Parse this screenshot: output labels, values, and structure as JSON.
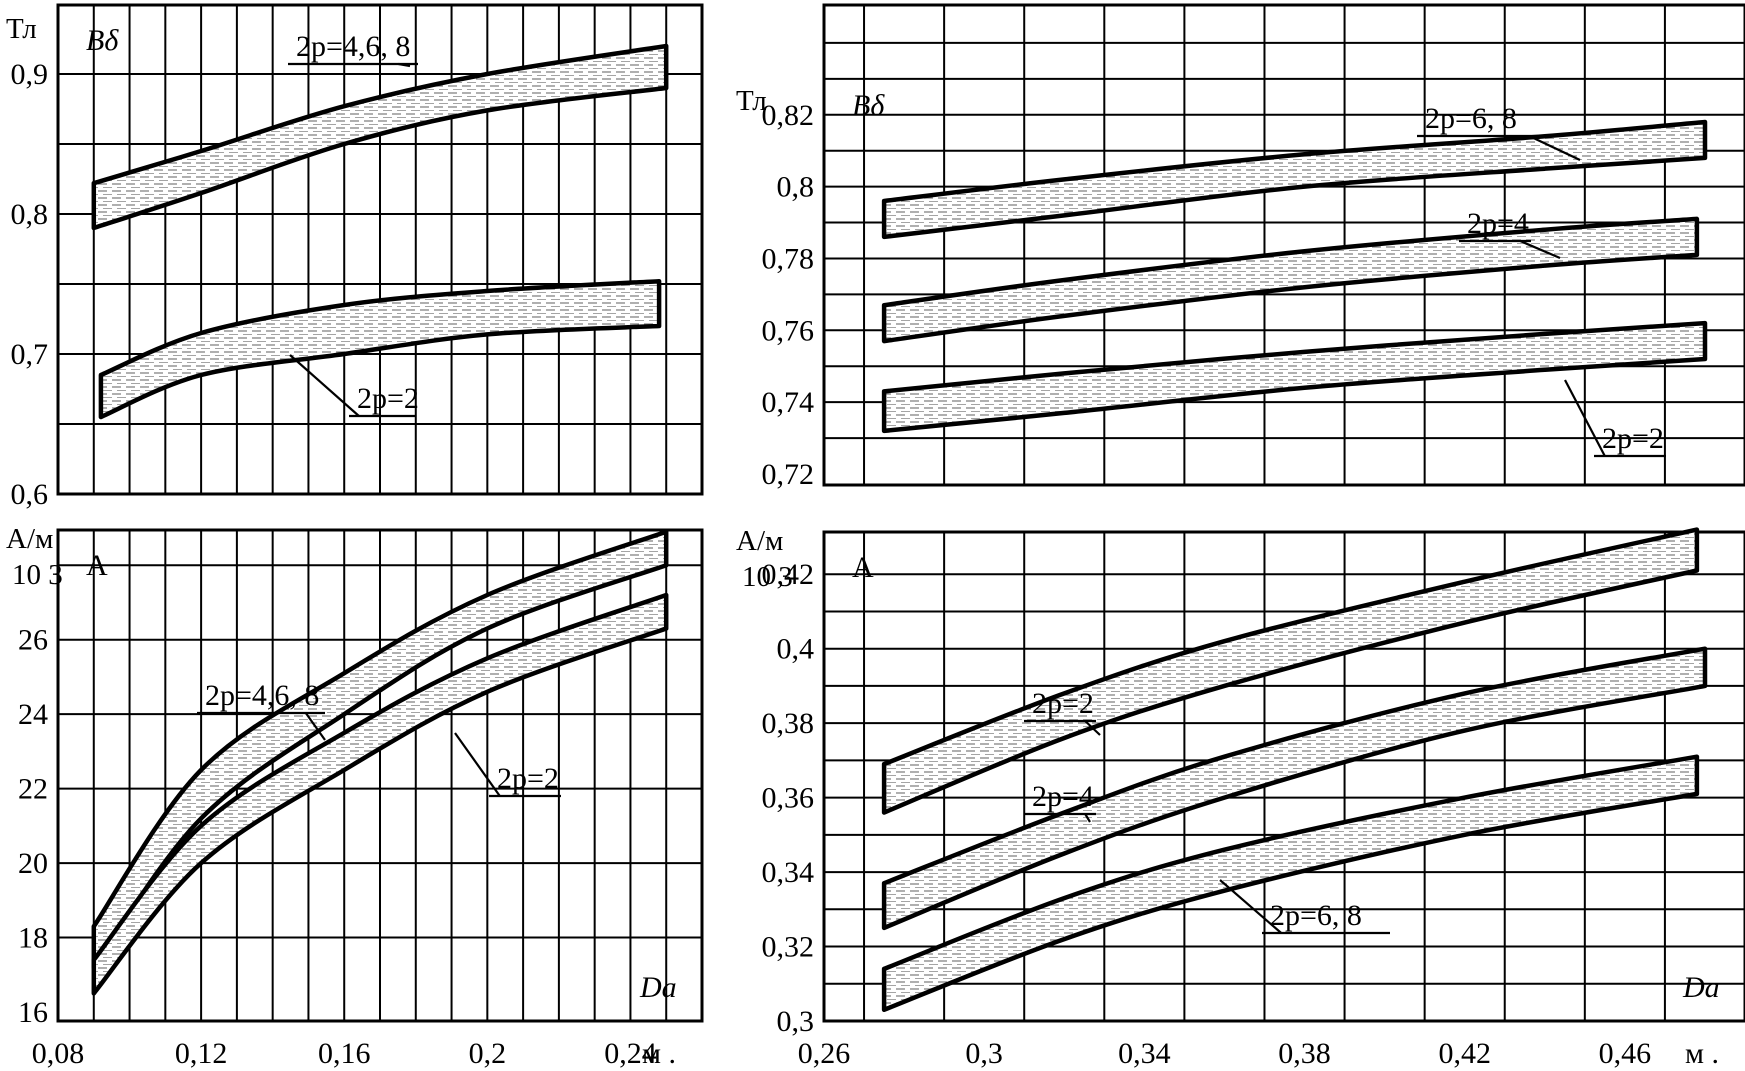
{
  "figure": {
    "x_unit_label": "м .",
    "colors": {
      "ink": "#000000",
      "paper": "#ffffff",
      "hatch": "#7a7a7a"
    }
  },
  "chart_data": [
    {
      "id": "top-left",
      "type": "area",
      "unit_label": "Тл",
      "corner_label": "Bδ",
      "x_ticks": [],
      "y_ticks": [
        "0,6",
        "0,7",
        "0,8",
        "0,9"
      ],
      "xlim": [
        0.08,
        0.26
      ],
      "ylim": [
        0.6,
        0.95
      ],
      "grid": true,
      "bands": [
        {
          "label": "2p=4,6, 8",
          "x_left": 0.09,
          "x_right": 0.25,
          "upper": [
            [
              0.09,
              0.822
            ],
            [
              0.12,
              0.845
            ],
            [
              0.16,
              0.877
            ],
            [
              0.2,
              0.9
            ],
            [
              0.25,
              0.92
            ]
          ],
          "lower": [
            [
              0.09,
              0.79
            ],
            [
              0.12,
              0.815
            ],
            [
              0.16,
              0.85
            ],
            [
              0.2,
              0.874
            ],
            [
              0.25,
              0.89
            ]
          ]
        },
        {
          "label": "2p=2",
          "x_left": 0.092,
          "x_right": 0.248,
          "upper": [
            [
              0.092,
              0.685
            ],
            [
              0.12,
              0.715
            ],
            [
              0.16,
              0.735
            ],
            [
              0.2,
              0.745
            ],
            [
              0.248,
              0.752
            ]
          ],
          "lower": [
            [
              0.092,
              0.655
            ],
            [
              0.12,
              0.685
            ],
            [
              0.16,
              0.7
            ],
            [
              0.2,
              0.714
            ],
            [
              0.248,
              0.72
            ]
          ]
        }
      ]
    },
    {
      "id": "bottom-left",
      "type": "area",
      "unit_label": "А/м",
      "multiplier_label": "10 3",
      "corner_label": "A",
      "x_axis_label": "Dа",
      "x_ticks": [
        "0,08",
        "0,12",
        "0,16",
        "0,2",
        "0,24"
      ],
      "y_ticks": [
        "16",
        "18",
        "20",
        "22",
        "24",
        "26"
      ],
      "xlim": [
        0.08,
        0.26
      ],
      "ylim": [
        16,
        29
      ],
      "grid": true,
      "bands": [
        {
          "label": "2p=4,6, 8",
          "x_left": 0.09,
          "x_right": 0.25,
          "upper": [
            [
              0.09,
              18.3
            ],
            [
              0.12,
              22.5
            ],
            [
              0.16,
              25.1
            ],
            [
              0.2,
              27.2
            ],
            [
              0.25,
              28.9
            ]
          ],
          "lower": [
            [
              0.09,
              17.2
            ],
            [
              0.12,
              21.2
            ],
            [
              0.16,
              24.0
            ],
            [
              0.2,
              26.3
            ],
            [
              0.25,
              28.0
            ]
          ]
        },
        {
          "label": "2p=2",
          "x_left": 0.09,
          "x_right": 0.25,
          "upper": [
            [
              0.09,
              17.4
            ],
            [
              0.12,
              21.0
            ],
            [
              0.16,
              23.5
            ],
            [
              0.2,
              25.5
            ],
            [
              0.25,
              27.2
            ]
          ],
          "lower": [
            [
              0.09,
              16.5
            ],
            [
              0.12,
              20.0
            ],
            [
              0.16,
              22.5
            ],
            [
              0.2,
              24.6
            ],
            [
              0.25,
              26.3
            ]
          ]
        }
      ]
    },
    {
      "id": "top-right",
      "type": "area",
      "unit_label": "Тл",
      "corner_label": "Bδ",
      "x_ticks": [],
      "y_ticks": [
        "0,72",
        "0,74",
        "0,76",
        "0,78",
        "0,8",
        "0,82"
      ],
      "xlim": [
        0.26,
        0.49
      ],
      "ylim": [
        0.72,
        0.85
      ],
      "grid": true,
      "bands": [
        {
          "label": "2p=6, 8",
          "x_left": 0.275,
          "x_right": 0.48,
          "upper": [
            [
              0.275,
              0.796
            ],
            [
              0.32,
              0.802
            ],
            [
              0.38,
              0.809
            ],
            [
              0.44,
              0.814
            ],
            [
              0.48,
              0.818
            ]
          ],
          "lower": [
            [
              0.275,
              0.786
            ],
            [
              0.32,
              0.792
            ],
            [
              0.38,
              0.8
            ],
            [
              0.44,
              0.805
            ],
            [
              0.48,
              0.808
            ]
          ]
        },
        {
          "label": "2p=4",
          "x_left": 0.275,
          "x_right": 0.478,
          "upper": [
            [
              0.275,
              0.767
            ],
            [
              0.32,
              0.774
            ],
            [
              0.38,
              0.782
            ],
            [
              0.44,
              0.788
            ],
            [
              0.478,
              0.791
            ]
          ],
          "lower": [
            [
              0.275,
              0.757
            ],
            [
              0.32,
              0.764
            ],
            [
              0.38,
              0.772
            ],
            [
              0.44,
              0.778
            ],
            [
              0.478,
              0.781
            ]
          ]
        },
        {
          "label": "2p=2",
          "x_left": 0.275,
          "x_right": 0.48,
          "upper": [
            [
              0.275,
              0.743
            ],
            [
              0.32,
              0.748
            ],
            [
              0.38,
              0.754
            ],
            [
              0.44,
              0.759
            ],
            [
              0.48,
              0.762
            ]
          ],
          "lower": [
            [
              0.275,
              0.732
            ],
            [
              0.32,
              0.737
            ],
            [
              0.38,
              0.744
            ],
            [
              0.44,
              0.749
            ],
            [
              0.48,
              0.752
            ]
          ]
        }
      ]
    },
    {
      "id": "bottom-right",
      "type": "area",
      "unit_label": "А/м",
      "multiplier_label": "10 3",
      "corner_label": "A",
      "x_axis_label": "Dа",
      "x_ticks": [
        "0,26",
        "0,3",
        "0,34",
        "0,38",
        "0,42",
        "0,46"
      ],
      "y_ticks": [
        "0,3",
        "0,32",
        "0,34",
        "0,36",
        "0,38",
        "0,4",
        "0,42"
      ],
      "xlim": [
        0.26,
        0.49
      ],
      "ylim": [
        0.3,
        0.43
      ],
      "grid": true,
      "bands": [
        {
          "label": "2p=2",
          "x_left": 0.275,
          "x_right": 0.478,
          "upper": [
            [
              0.275,
              0.369
            ],
            [
              0.32,
              0.388
            ],
            [
              0.36,
              0.402
            ],
            [
              0.42,
              0.418
            ],
            [
              0.478,
              0.432
            ]
          ],
          "lower": [
            [
              0.275,
              0.356
            ],
            [
              0.32,
              0.376
            ],
            [
              0.36,
              0.39
            ],
            [
              0.42,
              0.407
            ],
            [
              0.478,
              0.421
            ]
          ]
        },
        {
          "label": "2p=4",
          "x_left": 0.275,
          "x_right": 0.48,
          "upper": [
            [
              0.275,
              0.337
            ],
            [
              0.32,
              0.356
            ],
            [
              0.36,
              0.371
            ],
            [
              0.42,
              0.388
            ],
            [
              0.48,
              0.4
            ]
          ],
          "lower": [
            [
              0.275,
              0.325
            ],
            [
              0.32,
              0.345
            ],
            [
              0.36,
              0.36
            ],
            [
              0.42,
              0.378
            ],
            [
              0.48,
              0.39
            ]
          ]
        },
        {
          "label": "2p=6, 8",
          "x_left": 0.275,
          "x_right": 0.478,
          "upper": [
            [
              0.275,
              0.314
            ],
            [
              0.32,
              0.333
            ],
            [
              0.36,
              0.346
            ],
            [
              0.42,
              0.36
            ],
            [
              0.478,
              0.371
            ]
          ],
          "lower": [
            [
              0.275,
              0.303
            ],
            [
              0.32,
              0.322
            ],
            [
              0.36,
              0.335
            ],
            [
              0.42,
              0.35
            ],
            [
              0.478,
              0.361
            ]
          ]
        }
      ]
    }
  ]
}
